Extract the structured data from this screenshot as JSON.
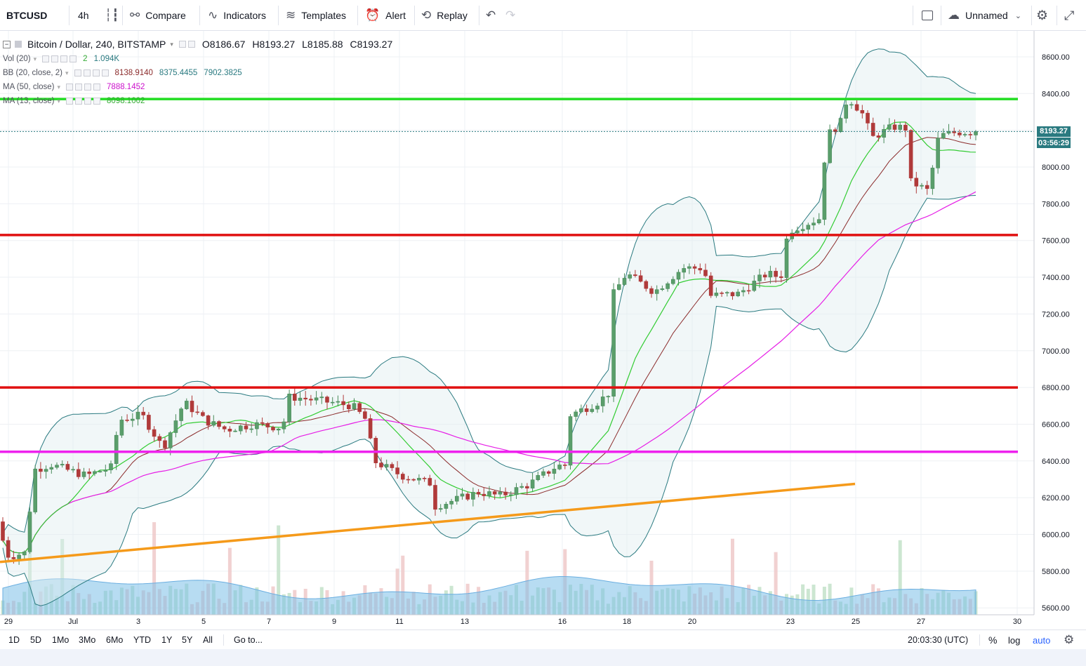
{
  "toolbar": {
    "symbol": "BTCUSD",
    "interval": "4h",
    "compare": "Compare",
    "indicators": "Indicators",
    "templates": "Templates",
    "alert": "Alert",
    "replay": "Replay",
    "layout_name": "Unnamed"
  },
  "legend": {
    "title": "Bitcoin / Dollar, 240, BITSTAMP",
    "open": "O8186.67",
    "high": "H8193.27",
    "low": "L8185.88",
    "close": "C8193.27",
    "vol": {
      "label": "Vol (20)",
      "v1": "2",
      "v2": "1.094K"
    },
    "bb": {
      "label": "BB (20, close, 2)",
      "basis": "8138.9140",
      "upper": "8375.4455",
      "lower": "7902.3825"
    },
    "ma50": {
      "label": "MA (50, close)",
      "value": "7888.1452"
    },
    "ma13": {
      "label": "MA (13, close)",
      "value": "8098.1002"
    }
  },
  "price_axis": [
    "8600.00",
    "8400.00",
    "8200.00",
    "8000.00",
    "7800.00",
    "7600.00",
    "7400.00",
    "7200.00",
    "7000.00",
    "6800.00",
    "6600.00",
    "6400.00",
    "6200.00",
    "6000.00",
    "5800.00",
    "5600.00"
  ],
  "last_price": "8193.27",
  "countdown": "03:56:29",
  "time_axis": [
    "29",
    "Jul",
    "3",
    "5",
    "7",
    "9",
    "11",
    "13",
    "16",
    "18",
    "20",
    "23",
    "25",
    "27",
    "30"
  ],
  "bottom": {
    "ranges": [
      "1D",
      "5D",
      "1Mo",
      "3Mo",
      "6Mo",
      "YTD",
      "1Y",
      "5Y",
      "All"
    ],
    "goto": "Go to...",
    "clock": "20:03:30 (UTC)",
    "percent": "%",
    "log": "log",
    "auto": "auto"
  },
  "colors": {
    "up": "#4a8b5b",
    "down": "#b03a3a",
    "ma13": "#33cc33",
    "ma50": "#e61ee6",
    "bb_basis": "#8b2b2b",
    "bb_band": "#2a7a80",
    "support_green": "#22dd22",
    "resistance_red": "#e01010",
    "level_magenta": "#ee22ee",
    "trend_orange": "#f59a1a",
    "auto_blue": "#2962ff"
  },
  "chart_data": {
    "type": "candlestick",
    "title": "Bitcoin / Dollar, 240, BITSTAMP",
    "x_ticks": [
      "29",
      "Jul",
      "3",
      "5",
      "7",
      "9",
      "11",
      "13",
      "16",
      "18",
      "20",
      "23",
      "25",
      "27",
      "30"
    ],
    "y_ticks": [
      5600,
      5800,
      6000,
      6200,
      6400,
      6600,
      6800,
      7000,
      7200,
      7400,
      7600,
      7800,
      8000,
      8200,
      8400,
      8600
    ],
    "ylim": [
      5530,
      8720
    ],
    "horizontal_levels": [
      {
        "name": "green",
        "price": 8370
      },
      {
        "name": "red-upper",
        "price": 7630
      },
      {
        "name": "red-lower",
        "price": 6800
      },
      {
        "name": "magenta",
        "price": 6450
      }
    ],
    "trendline": {
      "from": {
        "day": "29",
        "price": 5850
      },
      "to": {
        "day": "25",
        "price": 6275
      }
    },
    "candles_daily_summary": [
      {
        "day": "29",
        "open": 6100,
        "close": 5860
      },
      {
        "day": "30",
        "open": 5860,
        "close": 6400
      },
      {
        "day": "Jul 2",
        "open": 6350,
        "close": 6640
      },
      {
        "day": "5",
        "open": 6700,
        "close": 6620
      },
      {
        "day": "7",
        "open": 6570,
        "close": 6610
      },
      {
        "day": "8",
        "open": 6610,
        "close": 6750
      },
      {
        "day": "10",
        "open": 6640,
        "close": 6370
      },
      {
        "day": "12",
        "open": 6200,
        "close": 6250
      },
      {
        "day": "15",
        "open": 6270,
        "close": 6360
      },
      {
        "day": "16",
        "open": 6400,
        "close": 6720
      },
      {
        "day": "17",
        "open": 6730,
        "close": 7300
      },
      {
        "day": "18",
        "open": 7430,
        "close": 7320
      },
      {
        "day": "20",
        "open": 7450,
        "close": 7300
      },
      {
        "day": "23",
        "open": 7400,
        "close": 7690
      },
      {
        "day": "24",
        "open": 7700,
        "close": 8220
      },
      {
        "day": "25",
        "open": 8400,
        "close": 8250
      },
      {
        "day": "26",
        "open": 8200,
        "close": 7900
      },
      {
        "day": "27",
        "open": 7900,
        "close": 8170
      },
      {
        "day": "28",
        "open": 8186.67,
        "close": 8193.27
      }
    ]
  }
}
